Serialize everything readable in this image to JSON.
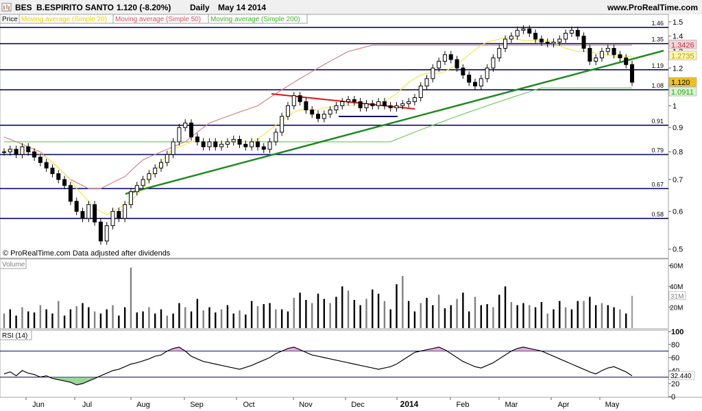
{
  "header": {
    "ticker": "BES",
    "name": "B.ESPIRITO SANTO",
    "quote": "1.120 (-8.20%)",
    "period": "Daily",
    "date": "May 14 2014",
    "site": "www.ProRealTime.com"
  },
  "legend": {
    "price": "Price",
    "ma20": "Moving average (Simple 20)",
    "ma50": "Moving average (Simple 50)",
    "ma200": "Moving average (Simple 200)"
  },
  "copyright": "© ProRealTime.com  Data adjusted after dividends",
  "colors": {
    "ma20": "#f0e84a",
    "ma50": "#d2848a",
    "ma200": "#6ccf5a",
    "trend_green": "#1f8a1f",
    "trend_red": "#e01010",
    "level": "#0a0a6e",
    "candle": "#000000"
  },
  "chart_data": [
    {
      "type": "line",
      "panel": "price",
      "ylim": [
        0.48,
        1.55
      ],
      "y_scale": "log",
      "y_ticks": [
        "1.5",
        "1.4",
        "1.3",
        "1.2",
        "1.1",
        "1",
        "0.9",
        "0.8",
        "0.7",
        "0.6",
        "0.5"
      ],
      "x_ticks": [
        "Jun",
        "Jul",
        "Aug",
        "Sep",
        "Oct",
        "Nov",
        "Dec",
        "2014",
        "Feb",
        "Mar",
        "Apr",
        "May"
      ],
      "levels": [
        {
          "label": "1.46",
          "value": 1.46
        },
        {
          "label": "1.35",
          "value": 1.35
        },
        {
          "label": "1.19",
          "value": 1.19
        },
        {
          "label": "1.08",
          "value": 1.08
        },
        {
          "label": "0.91",
          "value": 0.91
        },
        {
          "label": "0.79",
          "value": 0.79
        },
        {
          "label": "0.67",
          "value": 0.67
        },
        {
          "label": "0.58",
          "value": 0.58
        }
      ],
      "last_labels": [
        {
          "label": "1.3426",
          "value": 1.3426,
          "series": "ma50"
        },
        {
          "label": "1.2735",
          "value": 1.2735,
          "series": "ma20"
        },
        {
          "label": "1.120",
          "value": 1.12,
          "series": "price"
        },
        {
          "label": "1.0911",
          "value": 1.0911,
          "series": "ma200"
        }
      ],
      "close": [
        0.8,
        0.81,
        0.79,
        0.82,
        0.8,
        0.78,
        0.76,
        0.74,
        0.72,
        0.7,
        0.68,
        0.63,
        0.6,
        0.58,
        0.62,
        0.57,
        0.52,
        0.56,
        0.6,
        0.58,
        0.62,
        0.66,
        0.68,
        0.7,
        0.72,
        0.74,
        0.76,
        0.79,
        0.84,
        0.9,
        0.92,
        0.86,
        0.84,
        0.82,
        0.84,
        0.82,
        0.83,
        0.84,
        0.85,
        0.83,
        0.82,
        0.84,
        0.82,
        0.81,
        0.84,
        0.88,
        0.95,
        1.0,
        1.05,
        1.02,
        0.98,
        0.96,
        0.94,
        0.96,
        0.98,
        1.0,
        1.02,
        1.03,
        1.02,
        0.99,
        1.01,
        1.0,
        1.02,
        1.0,
        0.99,
        1.0,
        1.01,
        1.02,
        1.04,
        1.1,
        1.14,
        1.2,
        1.24,
        1.28,
        1.25,
        1.2,
        1.16,
        1.12,
        1.1,
        1.14,
        1.2,
        1.26,
        1.32,
        1.38,
        1.4,
        1.44,
        1.45,
        1.42,
        1.38,
        1.36,
        1.35,
        1.36,
        1.38,
        1.42,
        1.44,
        1.4,
        1.32,
        1.24,
        1.26,
        1.3,
        1.32,
        1.28,
        1.26,
        1.22,
        1.12
      ],
      "ma20": [
        0.8,
        0.81,
        0.81,
        0.81,
        0.8,
        0.8,
        0.79,
        0.78,
        0.76,
        0.74,
        0.72,
        0.7,
        0.67,
        0.65,
        0.63,
        0.61,
        0.6,
        0.59,
        0.6,
        0.61,
        0.62,
        0.63,
        0.65,
        0.67,
        0.7,
        0.73,
        0.76,
        0.79,
        0.81,
        0.82,
        0.83,
        0.84,
        0.84,
        0.84,
        0.84,
        0.84,
        0.84,
        0.84,
        0.84,
        0.84,
        0.84,
        0.84,
        0.85,
        0.87,
        0.89,
        0.91,
        0.93,
        0.95,
        0.97,
        0.98,
        0.98,
        0.98,
        0.98,
        0.99,
        0.99,
        1.0,
        1.0,
        1.0,
        1.0,
        1.0,
        1.0,
        1.01,
        1.01,
        1.02,
        1.04,
        1.06,
        1.09,
        1.12,
        1.14,
        1.16,
        1.17,
        1.17,
        1.17,
        1.18,
        1.2,
        1.22,
        1.25,
        1.28,
        1.31,
        1.34,
        1.36,
        1.37,
        1.38,
        1.39,
        1.39,
        1.38,
        1.37,
        1.37,
        1.37,
        1.37,
        1.37,
        1.36,
        1.34,
        1.32,
        1.31,
        1.3,
        1.3,
        1.3,
        1.29,
        1.28,
        1.28,
        1.27,
        1.27,
        1.27,
        1.27
      ],
      "ma50": [
        0.86,
        0.85,
        0.84,
        0.83,
        0.82,
        0.81,
        0.8,
        0.78,
        0.76,
        0.74,
        0.72,
        0.7,
        0.69,
        0.68,
        0.67,
        0.67,
        0.67,
        0.68,
        0.69,
        0.7,
        0.71,
        0.73,
        0.75,
        0.77,
        0.78,
        0.79,
        0.8,
        0.81,
        0.82,
        0.83,
        0.84,
        0.86,
        0.88,
        0.9,
        0.92,
        0.93,
        0.94,
        0.95,
        0.96,
        0.97,
        0.98,
        0.99,
        1.0,
        1.02,
        1.04,
        1.06,
        1.08,
        1.1,
        1.12,
        1.14,
        1.16,
        1.18,
        1.2,
        1.22,
        1.24,
        1.26,
        1.28,
        1.3,
        1.31,
        1.32,
        1.33,
        1.34,
        1.34,
        1.34,
        1.34,
        1.34,
        1.34,
        1.34,
        1.34,
        1.34,
        1.34,
        1.34,
        1.34,
        1.34,
        1.34,
        1.34,
        1.34,
        1.34,
        1.34,
        1.34,
        1.34,
        1.34,
        1.34,
        1.34,
        1.34,
        1.34,
        1.34,
        1.34,
        1.34,
        1.34,
        1.34,
        1.34,
        1.34,
        1.34,
        1.34,
        1.34,
        1.34,
        1.34,
        1.34,
        1.34,
        1.34,
        1.34,
        1.34,
        1.34,
        1.34
      ],
      "ma200": [
        0.84,
        0.84,
        0.84,
        0.84,
        0.84,
        0.84,
        0.84,
        0.84,
        0.84,
        0.84,
        0.84,
        0.84,
        0.84,
        0.84,
        0.84,
        0.84,
        0.84,
        0.84,
        0.84,
        0.84,
        0.84,
        0.84,
        0.84,
        0.84,
        0.84,
        0.84,
        0.84,
        0.84,
        0.84,
        0.84,
        0.84,
        0.84,
        0.84,
        0.84,
        0.84,
        0.84,
        0.84,
        0.84,
        0.84,
        0.84,
        0.84,
        0.84,
        0.84,
        0.84,
        0.84,
        0.84,
        0.84,
        0.84,
        0.84,
        0.84,
        0.84,
        0.84,
        0.84,
        0.84,
        0.84,
        0.84,
        0.84,
        0.84,
        0.84,
        0.84,
        0.84,
        0.84,
        0.84,
        0.84,
        0.84,
        0.85,
        0.86,
        0.87,
        0.88,
        0.89,
        0.9,
        0.91,
        0.92,
        0.93,
        0.94,
        0.95,
        0.96,
        0.97,
        0.98,
        0.99,
        1.0,
        1.01,
        1.02,
        1.03,
        1.04,
        1.05,
        1.06,
        1.07,
        1.08,
        1.09,
        1.09,
        1.09,
        1.09,
        1.09,
        1.09,
        1.09,
        1.09,
        1.09,
        1.09,
        1.09,
        1.09,
        1.09,
        1.09,
        1.09,
        1.09
      ]
    },
    {
      "type": "bar",
      "panel": "volume",
      "title": "Volume",
      "ylim": [
        0,
        65
      ],
      "y_ticks": [
        "60M",
        "40M",
        "20M"
      ],
      "last_label": "31M",
      "values": [
        14,
        18,
        12,
        20,
        16,
        15,
        22,
        18,
        14,
        26,
        12,
        18,
        21,
        24,
        20,
        16,
        14,
        18,
        22,
        12,
        20,
        58,
        15,
        16,
        20,
        14,
        18,
        12,
        14,
        24,
        20,
        16,
        28,
        17,
        20,
        15,
        18,
        22,
        14,
        17,
        13,
        26,
        21,
        23,
        24,
        18,
        18,
        16,
        29,
        34,
        27,
        24,
        33,
        28,
        24,
        30,
        40,
        36,
        27,
        22,
        28,
        37,
        33,
        26,
        18,
        42,
        50,
        26,
        16,
        24,
        29,
        22,
        32,
        19,
        22,
        28,
        34,
        16,
        30,
        22,
        23,
        20,
        32,
        40,
        25,
        22,
        24,
        22,
        20,
        25,
        14,
        18,
        26,
        20,
        18,
        26,
        26,
        30,
        22,
        24,
        22,
        20,
        18,
        14,
        31
      ]
    },
    {
      "type": "line",
      "panel": "rsi",
      "title": "RSI (14)",
      "ylim": [
        0,
        100
      ],
      "y_ticks": [
        "100",
        "80",
        "60",
        "40",
        "20",
        "0"
      ],
      "levels": [
        70,
        30
      ],
      "last_label": "32.440",
      "values": [
        35,
        38,
        32,
        40,
        36,
        34,
        30,
        32,
        28,
        26,
        24,
        22,
        18,
        20,
        24,
        28,
        32,
        36,
        40,
        42,
        46,
        50,
        52,
        55,
        58,
        62,
        64,
        70,
        74,
        76,
        70,
        62,
        58,
        54,
        52,
        50,
        48,
        46,
        44,
        42,
        45,
        48,
        52,
        56,
        60,
        66,
        70,
        74,
        76,
        72,
        68,
        64,
        62,
        60,
        58,
        56,
        54,
        52,
        50,
        48,
        46,
        44,
        42,
        44,
        46,
        50,
        56,
        62,
        68,
        70,
        72,
        74,
        76,
        72,
        66,
        60,
        54,
        50,
        46,
        44,
        48,
        52,
        58,
        64,
        70,
        74,
        76,
        74,
        72,
        70,
        66,
        62,
        58,
        54,
        50,
        46,
        42,
        38,
        35,
        40,
        44,
        46,
        42,
        38,
        32
      ]
    }
  ]
}
